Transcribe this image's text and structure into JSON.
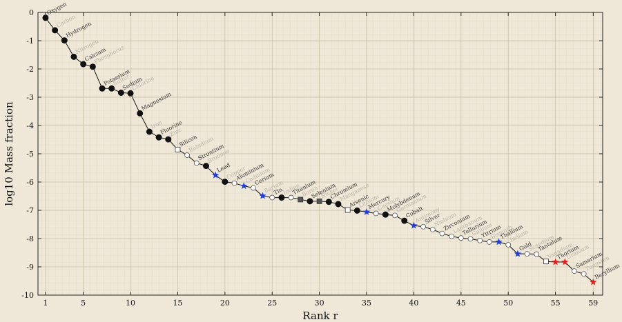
{
  "chart_data": {
    "type": "line",
    "title": "",
    "xlabel": "Rank r",
    "ylabel": "log10 Mass fraction",
    "xlim": [
      0.2,
      60.0
    ],
    "ylim": [
      -10,
      0
    ],
    "xticks": [
      1,
      5,
      10,
      15,
      20,
      25,
      30,
      35,
      40,
      45,
      50,
      55,
      59
    ],
    "yticks": [
      0,
      -1,
      -2,
      -3,
      -4,
      -5,
      -6,
      -7,
      -8,
      -9,
      -10
    ],
    "grid": true,
    "colors": {
      "line": "#111111",
      "filled": "#111111",
      "open": "#ffffff",
      "square": "#555555",
      "star_blue": "#1f3fd9",
      "star_red": "#e02020",
      "label_dark": "#333333",
      "label_light": "#b8b2a6"
    },
    "points": [
      {
        "r": 1,
        "y": -0.19,
        "label": "Oxygen",
        "marker": "filled",
        "emph": true
      },
      {
        "r": 2,
        "y": -0.63,
        "label": "Carbon",
        "marker": "filled",
        "emph": false
      },
      {
        "r": 3,
        "y": -0.99,
        "label": "Hydrogen",
        "marker": "filled",
        "emph": true
      },
      {
        "r": 4,
        "y": -1.57,
        "label": "Nitrogen",
        "marker": "filled",
        "emph": false
      },
      {
        "r": 5,
        "y": -1.83,
        "label": "Calcium",
        "marker": "filled",
        "emph": true
      },
      {
        "r": 6,
        "y": -1.92,
        "label": "Phosphorus",
        "marker": "filled",
        "emph": false
      },
      {
        "r": 7,
        "y": -2.69,
        "label": "Potassium",
        "marker": "filled",
        "emph": true
      },
      {
        "r": 8,
        "y": -2.69,
        "label": "Sulfur",
        "marker": "filled",
        "emph": false
      },
      {
        "r": 9,
        "y": -2.84,
        "label": "Sodium",
        "marker": "filled",
        "emph": true
      },
      {
        "r": 10,
        "y": -2.86,
        "label": "Chlorine",
        "marker": "filled",
        "emph": false
      },
      {
        "r": 11,
        "y": -3.57,
        "label": "Magnesium",
        "marker": "filled",
        "emph": true
      },
      {
        "r": 12,
        "y": -4.22,
        "label": "Iron",
        "marker": "filled",
        "emph": false
      },
      {
        "r": 13,
        "y": -4.42,
        "label": "Fluorine",
        "marker": "filled",
        "emph": true
      },
      {
        "r": 14,
        "y": -4.49,
        "label": "Zinc",
        "marker": "filled",
        "emph": false
      },
      {
        "r": 15,
        "y": -4.85,
        "label": "Silicon",
        "marker": "square-open",
        "emph": true
      },
      {
        "r": 16,
        "y": -5.05,
        "label": "Rubidium",
        "marker": "open",
        "emph": false
      },
      {
        "r": 17,
        "y": -5.33,
        "label": "Strontium",
        "marker": "open",
        "emph": true
      },
      {
        "r": 18,
        "y": -5.43,
        "label": "Bromine",
        "marker": "filled",
        "emph": false
      },
      {
        "r": 19,
        "y": -5.76,
        "label": "Lead",
        "marker": "star-blue",
        "emph": true
      },
      {
        "r": 20,
        "y": -5.99,
        "label": "Copper",
        "marker": "filled",
        "emph": false
      },
      {
        "r": 21,
        "y": -6.04,
        "label": "Aluminium",
        "marker": "open",
        "emph": true
      },
      {
        "r": 22,
        "y": -6.14,
        "label": "Cadmium",
        "marker": "star-blue",
        "emph": false
      },
      {
        "r": 23,
        "y": -6.21,
        "label": "Cerium",
        "marker": "open",
        "emph": true
      },
      {
        "r": 24,
        "y": -6.49,
        "label": "Barium",
        "marker": "star-blue",
        "emph": false
      },
      {
        "r": 25,
        "y": -6.55,
        "label": "Tin",
        "marker": "open",
        "emph": true
      },
      {
        "r": 26,
        "y": -6.55,
        "label": "Iodine",
        "marker": "filled",
        "emph": false
      },
      {
        "r": 27,
        "y": -6.55,
        "label": "Titanium",
        "marker": "open",
        "emph": true
      },
      {
        "r": 28,
        "y": -6.62,
        "label": "Boron",
        "marker": "square",
        "emph": false
      },
      {
        "r": 29,
        "y": -6.68,
        "label": "Selenium",
        "marker": "filled",
        "emph": true
      },
      {
        "r": 30,
        "y": -6.68,
        "label": "Nickel",
        "marker": "square",
        "emph": false
      },
      {
        "r": 31,
        "y": -6.7,
        "label": "Chromium",
        "marker": "filled",
        "emph": true
      },
      {
        "r": 32,
        "y": -6.78,
        "label": "Manganese",
        "marker": "filled",
        "emph": false
      },
      {
        "r": 33,
        "y": -6.99,
        "label": "Arsenic",
        "marker": "square-open",
        "emph": true
      },
      {
        "r": 34,
        "y": -7.01,
        "label": "Lithium",
        "marker": "filled",
        "emph": false
      },
      {
        "r": 35,
        "y": -7.06,
        "label": "Mercury",
        "marker": "star-blue",
        "emph": true
      },
      {
        "r": 36,
        "y": -7.11,
        "label": "Caesium",
        "marker": "open",
        "emph": false
      },
      {
        "r": 37,
        "y": -7.15,
        "label": "Molybdenum",
        "marker": "filled",
        "emph": true
      },
      {
        "r": 38,
        "y": -7.18,
        "label": "Germanium",
        "marker": "open",
        "emph": false
      },
      {
        "r": 39,
        "y": -7.37,
        "label": "Cobalt",
        "marker": "filled",
        "emph": true
      },
      {
        "r": 40,
        "y": -7.54,
        "label": "Antimony",
        "marker": "star-blue",
        "emph": false
      },
      {
        "r": 41,
        "y": -7.58,
        "label": "Silver",
        "marker": "open",
        "emph": true
      },
      {
        "r": 42,
        "y": -7.68,
        "label": "Niobium",
        "marker": "open",
        "emph": false
      },
      {
        "r": 43,
        "y": -7.82,
        "label": "Zirconium",
        "marker": "open",
        "emph": true
      },
      {
        "r": 44,
        "y": -7.92,
        "label": "Lanthanum",
        "marker": "open",
        "emph": false
      },
      {
        "r": 45,
        "y": -7.98,
        "label": "Tellurium",
        "marker": "open",
        "emph": true
      },
      {
        "r": 46,
        "y": -8.01,
        "label": "Gallium",
        "marker": "open",
        "emph": false
      },
      {
        "r": 47,
        "y": -8.07,
        "label": "Yttrium",
        "marker": "open",
        "emph": true
      },
      {
        "r": 48,
        "y": -8.12,
        "label": "Bismuth",
        "marker": "open",
        "emph": false
      },
      {
        "r": 49,
        "y": -8.12,
        "label": "Thallium",
        "marker": "star-blue",
        "emph": true
      },
      {
        "r": 50,
        "y": -8.22,
        "label": "Indium",
        "marker": "open",
        "emph": false
      },
      {
        "r": 51,
        "y": -8.54,
        "label": "Gold",
        "marker": "star-blue",
        "emph": true
      },
      {
        "r": 52,
        "y": -8.54,
        "label": "Scandium",
        "marker": "open",
        "emph": false
      },
      {
        "r": 53,
        "y": -8.55,
        "label": "Tantalum",
        "marker": "open",
        "emph": true
      },
      {
        "r": 54,
        "y": -8.81,
        "label": "Vanadium",
        "marker": "square-open",
        "emph": false
      },
      {
        "r": 55,
        "y": -8.83,
        "label": "Thorium",
        "marker": "star-red",
        "emph": true
      },
      {
        "r": 56,
        "y": -8.83,
        "label": "Uranium",
        "marker": "star-red",
        "emph": false
      },
      {
        "r": 57,
        "y": -9.15,
        "label": "Samarium",
        "marker": "open",
        "emph": true
      },
      {
        "r": 58,
        "y": -9.25,
        "label": "Tungsten",
        "marker": "open",
        "emph": false
      },
      {
        "r": 59,
        "y": -9.54,
        "label": "Beryllium",
        "marker": "star-red",
        "emph": true
      }
    ]
  }
}
